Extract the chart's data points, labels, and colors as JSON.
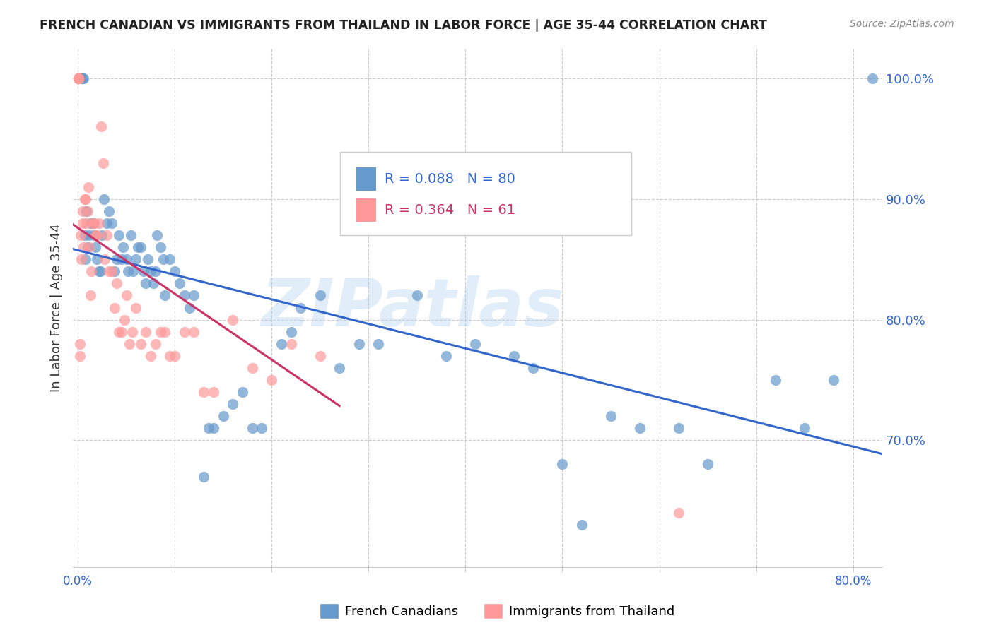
{
  "title": "FRENCH CANADIAN VS IMMIGRANTS FROM THAILAND IN LABOR FORCE | AGE 35-44 CORRELATION CHART",
  "source": "Source: ZipAtlas.com",
  "xlabel_bottom": "",
  "ylabel": "In Labor Force | Age 35-44",
  "xlabel_top": "",
  "right_ytick_labels": [
    "100.0%",
    "90.0%",
    "80.0%",
    "70.0%"
  ],
  "right_ytick_values": [
    1.0,
    0.9,
    0.8,
    0.7
  ],
  "bottom_xtick_labels": [
    "0.0%",
    "",
    "",
    "",
    "",
    "",
    "",
    "",
    "80.0%"
  ],
  "bottom_xtick_values": [
    0.0,
    0.1,
    0.2,
    0.3,
    0.4,
    0.5,
    0.6,
    0.7,
    0.8
  ],
  "xmin": -0.005,
  "xmax": 0.83,
  "ymin": 0.595,
  "ymax": 1.025,
  "blue_color": "#6699CC",
  "pink_color": "#FF9999",
  "blue_line_color": "#3366CC",
  "pink_line_color": "#CC3366",
  "legend_blue_label": "French Canadians",
  "legend_pink_label": "Immigrants from Thailand",
  "R_blue": 0.088,
  "N_blue": 80,
  "R_pink": 0.364,
  "N_pink": 61,
  "watermark": "ZIPatlas",
  "watermark_color": "#AACCEE",
  "blue_x": [
    0.003,
    0.004,
    0.005,
    0.006,
    0.007,
    0.008,
    0.009,
    0.01,
    0.012,
    0.013,
    0.015,
    0.016,
    0.017,
    0.018,
    0.02,
    0.022,
    0.023,
    0.025,
    0.027,
    0.03,
    0.032,
    0.035,
    0.038,
    0.04,
    0.042,
    0.045,
    0.047,
    0.05,
    0.052,
    0.055,
    0.057,
    0.06,
    0.062,
    0.065,
    0.068,
    0.07,
    0.072,
    0.075,
    0.078,
    0.08,
    0.082,
    0.085,
    0.088,
    0.09,
    0.095,
    0.1,
    0.105,
    0.11,
    0.115,
    0.12,
    0.13,
    0.135,
    0.14,
    0.15,
    0.16,
    0.17,
    0.18,
    0.19,
    0.21,
    0.22,
    0.23,
    0.25,
    0.27,
    0.29,
    0.31,
    0.35,
    0.38,
    0.41,
    0.45,
    0.47,
    0.5,
    0.52,
    0.55,
    0.58,
    0.62,
    0.65,
    0.72,
    0.75,
    0.78,
    0.82
  ],
  "blue_y": [
    1.0,
    1.0,
    1.0,
    1.0,
    0.87,
    0.85,
    0.89,
    0.86,
    0.87,
    0.88,
    0.88,
    0.88,
    0.87,
    0.86,
    0.85,
    0.84,
    0.84,
    0.87,
    0.9,
    0.88,
    0.89,
    0.88,
    0.84,
    0.85,
    0.87,
    0.85,
    0.86,
    0.85,
    0.84,
    0.87,
    0.84,
    0.85,
    0.86,
    0.86,
    0.84,
    0.83,
    0.85,
    0.84,
    0.83,
    0.84,
    0.87,
    0.86,
    0.85,
    0.82,
    0.85,
    0.84,
    0.83,
    0.82,
    0.81,
    0.82,
    0.67,
    0.71,
    0.71,
    0.72,
    0.73,
    0.74,
    0.71,
    0.71,
    0.78,
    0.79,
    0.81,
    0.82,
    0.76,
    0.78,
    0.78,
    0.82,
    0.77,
    0.78,
    0.77,
    0.76,
    0.68,
    0.63,
    0.72,
    0.71,
    0.71,
    0.68,
    0.75,
    0.71,
    0.75,
    1.0
  ],
  "pink_x": [
    0.001,
    0.001,
    0.001,
    0.001,
    0.001,
    0.001,
    0.001,
    0.002,
    0.002,
    0.003,
    0.004,
    0.005,
    0.005,
    0.006,
    0.007,
    0.008,
    0.009,
    0.01,
    0.011,
    0.012,
    0.013,
    0.014,
    0.015,
    0.016,
    0.017,
    0.018,
    0.02,
    0.022,
    0.024,
    0.026,
    0.028,
    0.03,
    0.032,
    0.035,
    0.038,
    0.04,
    0.042,
    0.045,
    0.048,
    0.05,
    0.053,
    0.056,
    0.06,
    0.065,
    0.07,
    0.075,
    0.08,
    0.085,
    0.09,
    0.095,
    0.1,
    0.11,
    0.12,
    0.13,
    0.14,
    0.16,
    0.18,
    0.2,
    0.22,
    0.25,
    0.62
  ],
  "pink_y": [
    1.0,
    1.0,
    1.0,
    1.0,
    1.0,
    1.0,
    1.0,
    0.78,
    0.77,
    0.87,
    0.85,
    0.88,
    0.89,
    0.86,
    0.9,
    0.9,
    0.88,
    0.89,
    0.91,
    0.86,
    0.82,
    0.84,
    0.88,
    0.88,
    0.88,
    0.87,
    0.87,
    0.88,
    0.96,
    0.93,
    0.85,
    0.87,
    0.84,
    0.84,
    0.81,
    0.83,
    0.79,
    0.79,
    0.8,
    0.82,
    0.78,
    0.79,
    0.81,
    0.78,
    0.79,
    0.77,
    0.78,
    0.79,
    0.79,
    0.77,
    0.77,
    0.79,
    0.79,
    0.74,
    0.74,
    0.8,
    0.76,
    0.75,
    0.78,
    0.77,
    0.64
  ]
}
